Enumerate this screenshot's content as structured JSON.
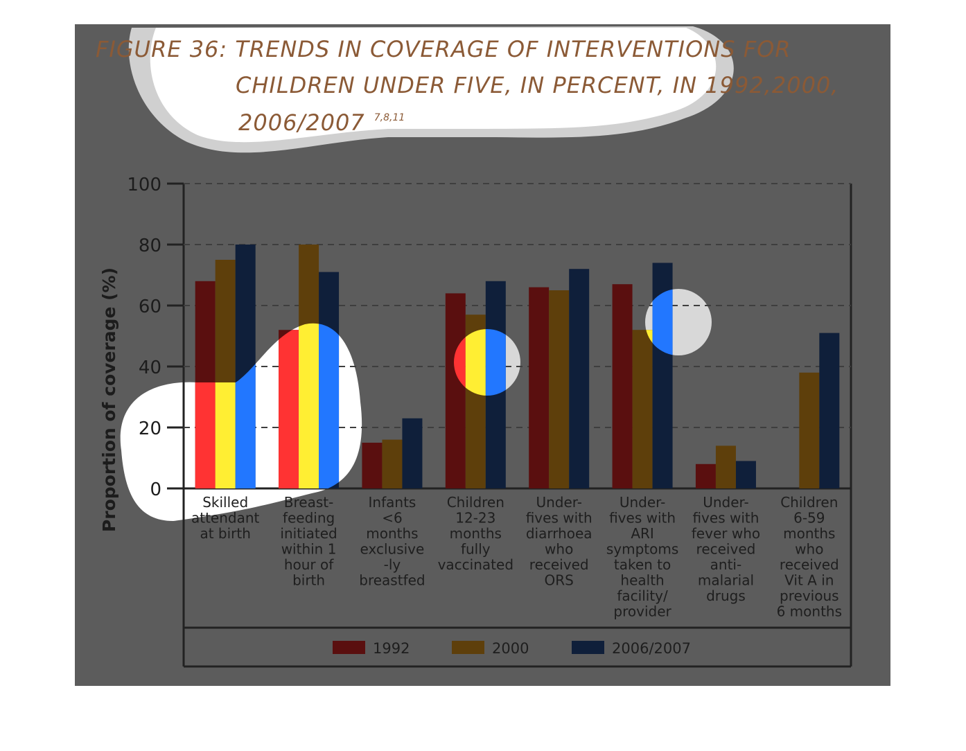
{
  "title": {
    "lines": [
      "FIGURE 36: TRENDS IN COVERAGE OF INTERVENTIONS FOR",
      "CHILDREN UNDER FIVE, IN PERCENT, IN 1992,2000,",
      "2006/2007"
    ],
    "superscript": "7,8,11"
  },
  "chart_data": {
    "type": "bar",
    "ylabel": "Proportion of coverage (%)",
    "xlabel": "",
    "ylim": [
      0,
      100
    ],
    "yticks": [
      "0",
      "20",
      "40",
      "60",
      "80",
      "100"
    ],
    "grid": true,
    "legend_position": "bottom",
    "categories": [
      [
        "Skilled",
        "attendant",
        "at birth"
      ],
      [
        "Breast-",
        "feeding",
        "initiated",
        "within 1",
        "hour of",
        "birth"
      ],
      [
        "Infants",
        "<6",
        "months",
        "exclusive",
        "-ly",
        "breastfed"
      ],
      [
        "Children",
        "12-23",
        "months",
        "fully",
        "vaccinated"
      ],
      [
        "Under-",
        "fives with",
        "diarrhoea",
        "who",
        "received",
        "ORS"
      ],
      [
        "Under-",
        "fives with",
        "ARI",
        "symptoms",
        "taken to",
        "health",
        "facility/",
        "provider"
      ],
      [
        "Under-",
        "fives with",
        "fever who",
        "received",
        "anti-",
        "malarial",
        "drugs"
      ],
      [
        "Children",
        "6-59",
        "months",
        "who",
        "received",
        "Vit A in",
        "previous",
        "6 months"
      ]
    ],
    "series": [
      {
        "name": "1992",
        "color": "#5a0f0f",
        "highlight_color": "#ff3333",
        "values": [
          68,
          52,
          15,
          64,
          66,
          67,
          8,
          null
        ]
      },
      {
        "name": "2000",
        "color": "#5e3f0b",
        "highlight_color": "#ffee33",
        "values": [
          75,
          80,
          16,
          57,
          65,
          52,
          14,
          38
        ]
      },
      {
        "name": "2006/2007",
        "color": "#0f1f3a",
        "highlight_color": "#2277ff",
        "values": [
          80,
          71,
          23,
          68,
          72,
          74,
          9,
          51
        ]
      }
    ]
  }
}
